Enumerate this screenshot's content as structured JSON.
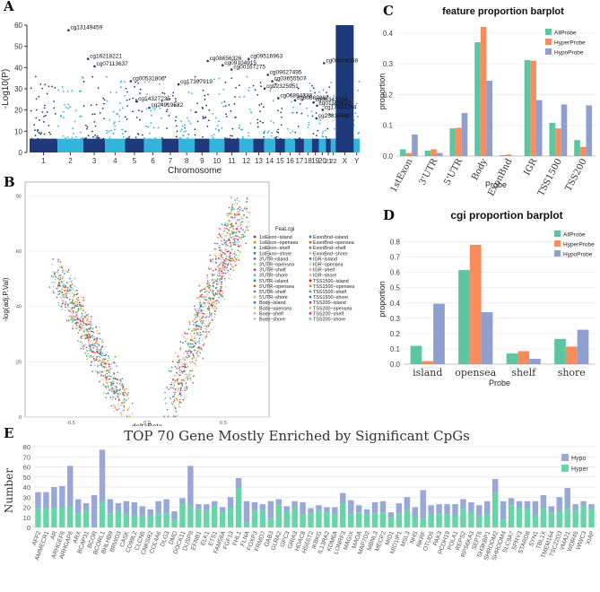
{
  "panel_labels": {
    "a": "A",
    "b": "B",
    "c": "C",
    "d": "D",
    "e": "E"
  },
  "colors": {
    "dark_blue": "#1f3a7a",
    "light_blue": "#33b4dc",
    "allprobe": "#5cc6a0",
    "hyperprobe": "#f98c5c",
    "hypoprobe": "#8f9fcf",
    "hypo_bar": "#98a8d8",
    "hyper_bar": "#66d6a8"
  },
  "chart_data": [
    {
      "id": "manhattan",
      "type": "scatter",
      "title": "",
      "xlabel": "Chromosome",
      "ylabel": "-Log10(P)",
      "ylim": [
        0,
        60
      ],
      "yticks": [
        0,
        10,
        20,
        30,
        40,
        50,
        60
      ],
      "xtick_labels": [
        "1",
        "2",
        "3",
        "4",
        "5",
        "6",
        "7",
        "8",
        "9",
        "10",
        "11",
        "12",
        "13",
        "14",
        "15",
        "16",
        "17",
        "18",
        "19",
        "20",
        "21",
        "22",
        "X",
        "Y"
      ],
      "annotations": [
        "cg13149459",
        "cg16218221",
        "cg07113637",
        "cg00531806",
        "cg14327235",
        "cg24919522",
        "cg17307919",
        "cg08656326",
        "cg09104915",
        "cg00167275",
        "cg09516963",
        "cg09027495",
        "cg03655507",
        "cg02325951",
        "cg06894338",
        "cg00669887",
        "cg06343204",
        "cg01186620",
        "cg17644294",
        "cg25834648",
        "cg00608558"
      ]
    },
    {
      "id": "volcano",
      "type": "scatter",
      "title": "",
      "xlabel": "deltaBeta",
      "ylabel": "-log(adj.P.Val)",
      "xticks": [
        -0.5,
        0.0,
        0.5
      ],
      "xtick_labels": [
        "-0.5",
        "0.0",
        "0.5"
      ],
      "ylim": [
        0,
        85
      ],
      "yticks": [
        0,
        20,
        40,
        60,
        80
      ],
      "legend_title": "Feat.cgi",
      "legend_left": [
        "1stExon−island",
        "1stExon−opensea",
        "1stExon−shelf",
        "1stExon−shore",
        "3'UTR−island",
        "3'UTR−opensea",
        "3'UTR−shelf",
        "3'UTR−shore",
        "5'UTR−island",
        "5'UTR−opensea",
        "5'UTR−shelf",
        "5'UTR−shore",
        "Body−island",
        "Body−opensea",
        "Body−shelf",
        "Body−shore"
      ],
      "legend_right": [
        "ExonBnd−island",
        "ExonBnd−opensea",
        "ExonBnd−shelf",
        "ExonBnd−shore",
        "IGR−island",
        "IGR−opensea",
        "IGR−shelf",
        "IGR−shore",
        "TSS1500−island",
        "TSS1500−opensea",
        "TSS1500−shelf",
        "TSS1500−shore",
        "TSS200−island",
        "TSS200−opensea",
        "TSS200−shelf",
        "TSS200−shore"
      ]
    },
    {
      "id": "feature",
      "type": "bar",
      "title": "feature proportion barplot",
      "xlabel": "Probe",
      "ylabel": "proportion",
      "ylim": [
        0,
        0.42
      ],
      "yticks": [
        0.0,
        0.1,
        0.2,
        0.3,
        0.4
      ],
      "ytick_labels": [
        "0.0",
        "0.1",
        "0.2",
        "0.3",
        "0.4"
      ],
      "categories": [
        "1stExon",
        "3'UTR",
        "5'UTR",
        "Body",
        "ExonBnd",
        "IGR",
        "TSS1500",
        "TSS200"
      ],
      "series": [
        {
          "name": "AllProbe",
          "values": [
            0.022,
            0.018,
            0.09,
            0.37,
            0.003,
            0.312,
            0.108,
            0.052
          ]
        },
        {
          "name": "HyperProbe",
          "values": [
            0.01,
            0.022,
            0.092,
            0.42,
            0.005,
            0.31,
            0.09,
            0.03
          ]
        },
        {
          "name": "HypoProbe",
          "values": [
            0.07,
            0.01,
            0.14,
            0.245,
            0.001,
            0.182,
            0.168,
            0.165
          ]
        }
      ]
    },
    {
      "id": "cgi",
      "type": "bar",
      "title": "cgi proportion barplot",
      "xlabel": "Probe",
      "ylabel": "proportion",
      "ylim": [
        0,
        0.85
      ],
      "yticks": [
        0.0,
        0.1,
        0.2,
        0.3,
        0.4,
        0.5,
        0.6,
        0.7,
        0.8
      ],
      "ytick_labels": [
        "0.0",
        "0.1",
        "0.2",
        "0.3",
        "0.4",
        "0.5",
        "0.6",
        "0.7",
        "0.8"
      ],
      "categories": [
        "island",
        "opensea",
        "shelf",
        "shore"
      ],
      "series": [
        {
          "name": "AllProbe",
          "values": [
            0.12,
            0.615,
            0.07,
            0.165
          ]
        },
        {
          "name": "HyperProbe",
          "values": [
            0.02,
            0.78,
            0.085,
            0.115
          ]
        },
        {
          "name": "HypoProbe",
          "values": [
            0.395,
            0.34,
            0.035,
            0.225
          ]
        }
      ]
    },
    {
      "id": "top70",
      "type": "bar",
      "title": "TOP 70 Gene Mostly Enriched by Significant CpGs",
      "xlabel": "",
      "ylabel": "Number",
      "ylim": [
        0,
        80
      ],
      "yticks": [
        0,
        10,
        20,
        30,
        40,
        50,
        60,
        70,
        80
      ],
      "categories": [
        "AFF2",
        "AMMECR1",
        "AR",
        "ARHGEF6",
        "ARHGAP6",
        "ARX",
        "BCAP31",
        "BCOR",
        "BCORL1",
        "BHLHB9",
        "BRWD3",
        "CASK",
        "CD99L2",
        "CLCN5",
        "CNKSR2",
        "COL4A6",
        "DLG3",
        "DMD",
        "DOCK11",
        "DUSP9",
        "EFNB1",
        "ELK1",
        "ETS1",
        "FAM58A",
        "FGF13",
        "FHL1",
        "FLNA",
        "FOXP3",
        "FRMD7",
        "GAB3",
        "GLRA2",
        "GPC3",
        "GRIA3",
        "HDAC8",
        "HS6ST2",
        "IKBKG",
        "IL13RA2",
        "KDM6A",
        "LONRF3",
        "MAGIX",
        "MAOA",
        "MAP7D2",
        "MBNL3",
        "MECP2",
        "MID1",
        "MID1IP1",
        "MSL3",
        "NHS",
        "NKRF",
        "OTUD5",
        "PAK3",
        "PCDH19",
        "POLA1",
        "REPS2",
        "RPS6KA3",
        "SEPT6",
        "SH3KBP1",
        "SHROOM2",
        "SHROOM4",
        "SLC9A7",
        "SPRY3",
        "STARD8",
        "SYN1",
        "TBL1X",
        "TMEM164",
        "TSC22D3",
        "VMA21",
        "WDR45",
        "WWC3",
        "XIAP"
      ],
      "series": [
        {
          "name": "Hypo",
          "values": [
            16,
            16,
            20,
            21,
            40,
            14,
            7,
            32,
            52,
            14,
            7,
            13,
            13,
            10,
            7,
            12,
            14,
            8,
            5,
            40,
            5,
            6,
            5,
            5,
            10,
            10,
            21,
            8,
            6,
            17,
            6,
            5,
            6,
            12,
            5,
            5,
            5,
            7,
            10,
            14,
            7,
            5,
            11,
            11,
            5,
            10,
            13,
            9,
            28,
            9,
            9,
            10,
            11,
            10,
            9,
            11,
            13,
            14,
            18,
            7,
            6,
            7,
            14,
            13,
            6,
            14,
            20,
            6,
            5,
            5
          ]
        },
        {
          "name": "Hyper",
          "values": [
            19,
            19,
            20,
            20,
            21,
            14,
            17,
            0,
            25,
            14,
            17,
            13,
            12,
            11,
            11,
            14,
            14,
            8,
            24,
            21,
            18,
            17,
            21,
            15,
            20,
            39,
            5,
            17,
            17,
            9,
            22,
            16,
            20,
            13,
            14,
            17,
            15,
            13,
            24,
            13,
            15,
            13,
            14,
            15,
            10,
            14,
            17,
            11,
            9,
            13,
            14,
            13,
            12,
            18,
            16,
            11,
            13,
            34,
            8,
            22,
            20,
            19,
            12,
            19,
            15,
            16,
            19,
            17,
            21,
            18
          ]
        }
      ]
    }
  ],
  "legend_c": [
    "AllProbe",
    "HyperProbe",
    "HypoProbe"
  ],
  "legend_d": [
    "AllProbe",
    "HyperProbe",
    "HypoProbe"
  ],
  "legend_e": [
    "Hypo",
    "Hyper"
  ]
}
